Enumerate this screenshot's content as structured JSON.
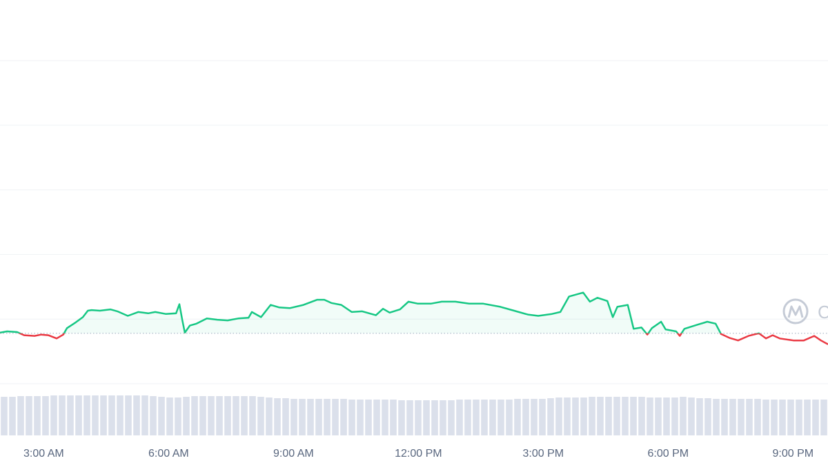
{
  "chart_data": {
    "type": "line",
    "watermark": "CoinMarketCap",
    "xlim": [
      1.95,
      21.84
    ],
    "xticks": [
      {
        "value": 3,
        "label": "3:00 AM"
      },
      {
        "value": 6,
        "label": "6:00 AM"
      },
      {
        "value": 9,
        "label": "9:00 AM"
      },
      {
        "value": 12,
        "label": "12:00 PM"
      },
      {
        "value": 15,
        "label": "3:00 PM"
      },
      {
        "value": 18,
        "label": "6:00 PM"
      },
      {
        "value": 21,
        "label": "9:00 PM"
      }
    ],
    "ylim": [
      0,
      5
    ],
    "yticks": [
      0,
      1,
      2,
      3,
      4,
      5
    ],
    "grid": true,
    "baseline": 0.78,
    "up_color": "#16c784",
    "down_color": "#ea3943",
    "x": [
      1.95,
      2.12,
      2.36,
      2.53,
      2.78,
      2.94,
      3.11,
      3.31,
      3.47,
      3.56,
      3.77,
      3.94,
      4.06,
      4.15,
      4.35,
      4.6,
      4.77,
      5.02,
      5.27,
      5.51,
      5.68,
      5.93,
      6.18,
      6.26,
      6.33,
      6.39,
      6.51,
      6.67,
      6.92,
      7.17,
      7.42,
      7.67,
      7.92,
      8.0,
      8.22,
      8.45,
      8.66,
      8.91,
      9.24,
      9.57,
      9.74,
      9.91,
      10.15,
      10.4,
      10.65,
      10.98,
      11.15,
      11.31,
      11.56,
      11.76,
      11.98,
      12.31,
      12.56,
      12.89,
      13.22,
      13.55,
      13.97,
      14.3,
      14.63,
      14.88,
      15.21,
      15.41,
      15.62,
      15.96,
      16.12,
      16.3,
      16.54,
      16.67,
      16.78,
      17.03,
      17.17,
      17.36,
      17.5,
      17.61,
      17.83,
      17.94,
      18.19,
      18.28,
      18.39,
      18.69,
      18.94,
      19.14,
      19.27,
      19.47,
      19.68,
      19.93,
      20.18,
      20.35,
      20.51,
      20.68,
      21.01,
      21.26,
      21.51,
      21.67,
      21.84
    ],
    "values": [
      0.79,
      0.81,
      0.8,
      0.75,
      0.74,
      0.76,
      0.75,
      0.7,
      0.76,
      0.86,
      0.95,
      1.03,
      1.13,
      1.14,
      1.13,
      1.15,
      1.12,
      1.05,
      1.11,
      1.09,
      1.11,
      1.08,
      1.09,
      1.23,
      0.98,
      0.79,
      0.9,
      0.93,
      1.01,
      0.99,
      0.98,
      1.01,
      1.02,
      1.11,
      1.03,
      1.22,
      1.18,
      1.17,
      1.22,
      1.3,
      1.3,
      1.25,
      1.22,
      1.11,
      1.12,
      1.06,
      1.16,
      1.1,
      1.15,
      1.27,
      1.24,
      1.24,
      1.27,
      1.27,
      1.24,
      1.24,
      1.19,
      1.13,
      1.07,
      1.05,
      1.08,
      1.11,
      1.35,
      1.41,
      1.27,
      1.33,
      1.28,
      1.03,
      1.19,
      1.22,
      0.85,
      0.87,
      0.76,
      0.86,
      0.96,
      0.84,
      0.81,
      0.74,
      0.85,
      0.91,
      0.96,
      0.93,
      0.77,
      0.71,
      0.67,
      0.74,
      0.78,
      0.7,
      0.75,
      0.7,
      0.67,
      0.67,
      0.74,
      0.67,
      0.61
    ],
    "volume": {
      "ylim": [
        0,
        60
      ],
      "color": "#cfd6e4",
      "values": [
        56,
        56,
        57,
        57,
        57,
        57,
        58,
        58,
        58,
        58,
        58,
        58,
        58,
        58,
        58,
        58,
        58,
        58,
        57,
        56,
        55,
        55,
        56,
        57,
        57,
        57,
        57,
        57,
        57,
        57,
        57,
        56,
        55,
        54,
        54,
        53,
        53,
        53,
        53,
        53,
        53,
        53,
        52,
        52,
        52,
        52,
        52,
        52,
        51,
        51,
        51,
        51,
        51,
        51,
        51,
        52,
        52,
        52,
        52,
        52,
        52,
        52,
        53,
        53,
        53,
        53,
        54,
        55,
        55,
        55,
        55,
        56,
        56,
        56,
        56,
        56,
        56,
        56,
        55,
        55,
        55,
        55,
        56,
        55,
        54,
        54,
        53,
        53,
        53,
        53,
        53,
        53,
        52,
        52,
        52,
        52,
        52,
        52,
        52,
        52
      ]
    }
  }
}
